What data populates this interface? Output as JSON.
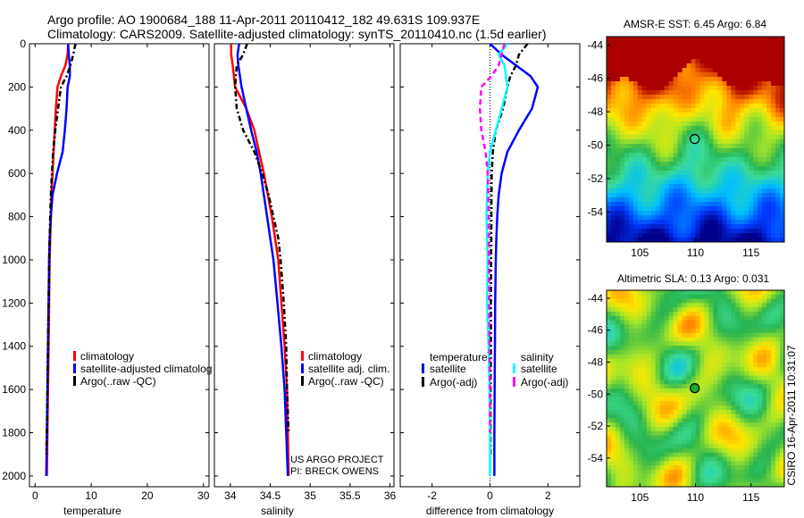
{
  "header": {
    "line1": "Argo profile: AO 1900684_188 11-Apr-2011 20110412_182 49.631S 109.937E",
    "line2": "Climatology: CARS2009. Satellite-adjusted climatology: synTS_20110410.nc (1.5d earlier)"
  },
  "side_label": "CSIRO 16-Apr-2011 10:31:07",
  "credit": [
    "US ARGO PROJECT",
    "PI: BRECK OWENS"
  ],
  "colors": {
    "red": "#ff0000",
    "blue": "#0000ff",
    "black": "#000000",
    "cyan": "#00ffff",
    "magenta": "#ff00ff",
    "sst_warm": "#aa0000",
    "marker": "#000000"
  },
  "chart_data": [
    {
      "id": "temperature",
      "type": "line",
      "xlabel": "temperature",
      "ylabel": "",
      "xlim": [
        -1,
        31
      ],
      "ylim": [
        2050,
        0
      ],
      "xticks": [
        0,
        10,
        20,
        30
      ],
      "yticks": [
        0,
        200,
        400,
        600,
        800,
        1000,
        1200,
        1400,
        1600,
        1800,
        2000
      ],
      "legend": [
        "climatology",
        "satellite-adjusted climatolog",
        "Argo(..raw -QC)"
      ],
      "legend_placement": "lower-right",
      "series": [
        {
          "name": "climatology",
          "color": "red",
          "dash": "",
          "points": [
            [
              5.9,
              0
            ],
            [
              5.8,
              50
            ],
            [
              5.4,
              100
            ],
            [
              4.6,
              150
            ],
            [
              4.0,
              200
            ],
            [
              3.7,
              300
            ],
            [
              3.5,
              400
            ],
            [
              3.3,
              500
            ],
            [
              3.1,
              600
            ],
            [
              2.9,
              700
            ],
            [
              2.8,
              800
            ],
            [
              2.7,
              900
            ],
            [
              2.6,
              1000
            ],
            [
              2.5,
              1200
            ],
            [
              2.4,
              1400
            ],
            [
              2.3,
              1600
            ],
            [
              2.2,
              1800
            ],
            [
              2.1,
              2000
            ]
          ]
        },
        {
          "name": "satellite-adjusted climatolog",
          "color": "blue",
          "dash": "",
          "points": [
            [
              5.9,
              0
            ],
            [
              6.0,
              50
            ],
            [
              6.2,
              100
            ],
            [
              6.2,
              150
            ],
            [
              5.8,
              200
            ],
            [
              5.6,
              300
            ],
            [
              5.3,
              400
            ],
            [
              4.9,
              500
            ],
            [
              3.9,
              600
            ],
            [
              3.1,
              700
            ],
            [
              2.8,
              800
            ],
            [
              2.6,
              900
            ],
            [
              2.5,
              1000
            ],
            [
              2.4,
              1200
            ],
            [
              2.3,
              1400
            ],
            [
              2.2,
              1600
            ],
            [
              2.1,
              1800
            ],
            [
              2.0,
              2000
            ]
          ]
        },
        {
          "name": "Argo(..raw -QC)",
          "color": "black",
          "dash": "6,3,2,3",
          "points": [
            [
              7.2,
              0
            ],
            [
              6.8,
              50
            ],
            [
              6.3,
              100
            ],
            [
              5.6,
              150
            ],
            [
              4.6,
              200
            ],
            [
              4.1,
              300
            ],
            [
              3.6,
              400
            ],
            [
              3.2,
              500
            ],
            [
              3.0,
              600
            ],
            [
              2.8,
              700
            ],
            [
              2.7,
              800
            ],
            [
              2.6,
              900
            ],
            [
              2.5,
              1000
            ],
            [
              2.4,
              1200
            ],
            [
              2.3,
              1400
            ],
            [
              2.2,
              1600
            ],
            [
              2.1,
              1800
            ],
            [
              2.0,
              1900
            ]
          ]
        }
      ]
    },
    {
      "id": "salinity",
      "type": "line",
      "xlabel": "salinity",
      "ylabel": "",
      "xlim": [
        33.8,
        36.05
      ],
      "ylim": [
        2050,
        0
      ],
      "xticks": [
        34,
        34.5,
        35,
        35.5,
        36
      ],
      "xtick_labels": [
        "34",
        "34.5",
        "35",
        "35.5",
        "36"
      ],
      "yticks": [
        0,
        200,
        400,
        600,
        800,
        1000,
        1200,
        1400,
        1600,
        1800,
        2000
      ],
      "legend": [
        "climatology",
        "satellite adj. clim.",
        "Argo(..raw -QC)"
      ],
      "legend_placement": "lower-right",
      "series": [
        {
          "name": "climatology",
          "color": "red",
          "dash": "",
          "points": [
            [
              34.01,
              0
            ],
            [
              34.01,
              50
            ],
            [
              34.03,
              100
            ],
            [
              34.06,
              200
            ],
            [
              34.2,
              300
            ],
            [
              34.3,
              400
            ],
            [
              34.36,
              500
            ],
            [
              34.42,
              600
            ],
            [
              34.47,
              700
            ],
            [
              34.52,
              800
            ],
            [
              34.56,
              900
            ],
            [
              34.6,
              1000
            ],
            [
              34.64,
              1200
            ],
            [
              34.68,
              1400
            ],
            [
              34.71,
              1600
            ],
            [
              34.72,
              1800
            ],
            [
              34.73,
              2000
            ]
          ]
        },
        {
          "name": "satellite adj. clim.",
          "color": "blue",
          "dash": "",
          "points": [
            [
              34.11,
              0
            ],
            [
              34.09,
              50
            ],
            [
              34.1,
              100
            ],
            [
              34.14,
              200
            ],
            [
              34.2,
              300
            ],
            [
              34.26,
              400
            ],
            [
              34.33,
              500
            ],
            [
              34.38,
              600
            ],
            [
              34.42,
              700
            ],
            [
              34.46,
              800
            ],
            [
              34.5,
              900
            ],
            [
              34.54,
              1000
            ],
            [
              34.59,
              1200
            ],
            [
              34.64,
              1400
            ],
            [
              34.68,
              1600
            ],
            [
              34.7,
              1800
            ],
            [
              34.72,
              2000
            ]
          ]
        },
        {
          "name": "Argo(..raw -QC)",
          "color": "black",
          "dash": "6,3,2,3",
          "points": [
            [
              34.21,
              0
            ],
            [
              34.16,
              50
            ],
            [
              34.08,
              100
            ],
            [
              34.06,
              200
            ],
            [
              34.08,
              300
            ],
            [
              34.16,
              400
            ],
            [
              34.3,
              500
            ],
            [
              34.4,
              600
            ],
            [
              34.48,
              700
            ],
            [
              34.54,
              800
            ],
            [
              34.6,
              900
            ],
            [
              34.63,
              1000
            ],
            [
              34.67,
              1200
            ],
            [
              34.7,
              1400
            ],
            [
              34.71,
              1600
            ],
            [
              34.73,
              1800
            ]
          ]
        }
      ]
    },
    {
      "id": "difference",
      "type": "line",
      "xlabel": "difference from climatology",
      "ylabel": "",
      "xlim": [
        -3.1,
        3.1
      ],
      "ylim": [
        2050,
        0
      ],
      "xticks": [
        -2,
        0,
        2
      ],
      "yticks": [
        0,
        200,
        400,
        600,
        800,
        1000,
        1200,
        1400,
        1600,
        1800,
        2000
      ],
      "legend_temperature_title": "temperature",
      "legend_salinity_title": "salinity",
      "legend_temperature": [
        "satellite",
        "Argo(-adj)"
      ],
      "legend_salinity": [
        "satellite",
        "Argo(-adj)"
      ],
      "legend_placement": "lower-center",
      "series": [
        {
          "name": "temperature satellite",
          "color": "blue",
          "dash": "",
          "points": [
            [
              0.0,
              0
            ],
            [
              0.4,
              50
            ],
            [
              0.9,
              100
            ],
            [
              1.4,
              150
            ],
            [
              1.65,
              200
            ],
            [
              1.45,
              300
            ],
            [
              1.0,
              400
            ],
            [
              0.6,
              500
            ],
            [
              0.4,
              600
            ],
            [
              0.3,
              700
            ],
            [
              0.25,
              800
            ],
            [
              0.22,
              900
            ],
            [
              0.2,
              1000
            ],
            [
              0.18,
              1200
            ],
            [
              0.17,
              1400
            ],
            [
              0.16,
              1600
            ],
            [
              0.15,
              1800
            ],
            [
              0.15,
              2000
            ]
          ]
        },
        {
          "name": "temperature Argo(-adj)",
          "color": "black",
          "dash": "6,3,2,3",
          "points": [
            [
              1.3,
              0
            ],
            [
              1.0,
              50
            ],
            [
              0.9,
              100
            ],
            [
              0.7,
              150
            ],
            [
              0.6,
              200
            ],
            [
              0.45,
              300
            ],
            [
              0.2,
              400
            ],
            [
              0.1,
              500
            ],
            [
              0.06,
              600
            ],
            [
              0.05,
              800
            ],
            [
              0.04,
              1000
            ],
            [
              0.03,
              1200
            ],
            [
              0.03,
              1400
            ],
            [
              0.02,
              1600
            ],
            [
              0.02,
              1800
            ],
            [
              0.02,
              1900
            ]
          ]
        },
        {
          "name": "salinity satellite",
          "color": "cyan",
          "dash": "",
          "points": [
            [
              0.6,
              0
            ],
            [
              0.3,
              50
            ],
            [
              0.5,
              100
            ],
            [
              0.6,
              200
            ],
            [
              0.4,
              300
            ],
            [
              0.2,
              400
            ],
            [
              0.0,
              500
            ],
            [
              -0.08,
              600
            ],
            [
              -0.1,
              700
            ],
            [
              -0.12,
              800
            ],
            [
              -0.08,
              1000
            ],
            [
              -0.1,
              1200
            ],
            [
              -0.05,
              1400
            ],
            [
              -0.02,
              1600
            ],
            [
              0.0,
              1800
            ],
            [
              0.0,
              2000
            ]
          ]
        },
        {
          "name": "salinity Argo(-adj)",
          "color": "magenta",
          "dash": "6,4",
          "points": [
            [
              0.5,
              0
            ],
            [
              0.4,
              50
            ],
            [
              0.3,
              100
            ],
            [
              0.05,
              150
            ],
            [
              -0.3,
              200
            ],
            [
              -0.35,
              300
            ],
            [
              -0.3,
              400
            ],
            [
              -0.15,
              500
            ],
            [
              -0.08,
              600
            ],
            [
              -0.06,
              700
            ],
            [
              -0.05,
              800
            ],
            [
              -0.04,
              1000
            ],
            [
              -0.03,
              1200
            ],
            [
              -0.02,
              1400
            ],
            [
              0.0,
              1600
            ],
            [
              0.0,
              1800
            ]
          ]
        }
      ]
    },
    {
      "id": "sst_map",
      "type": "heatmap",
      "title": "AMSR-E SST: 6.45 Argo: 6.84",
      "xlim": [
        102,
        118
      ],
      "ylim": [
        -55.8,
        -43.5
      ],
      "xticks": [
        105,
        110,
        115
      ],
      "yticks": [
        -44,
        -46,
        -48,
        -50,
        -52,
        -54
      ],
      "marker": [
        109.937,
        -49.631
      ]
    },
    {
      "id": "sla_map",
      "type": "heatmap",
      "title": "Altimetric SLA: 0.13 Argo: 0.031",
      "xlim": [
        102,
        118
      ],
      "ylim": [
        -55.8,
        -43.5
      ],
      "xticks": [
        105,
        110,
        115
      ],
      "yticks": [
        -44,
        -46,
        -48,
        -50,
        -52,
        -54
      ],
      "marker": [
        109.937,
        -49.631
      ]
    }
  ]
}
